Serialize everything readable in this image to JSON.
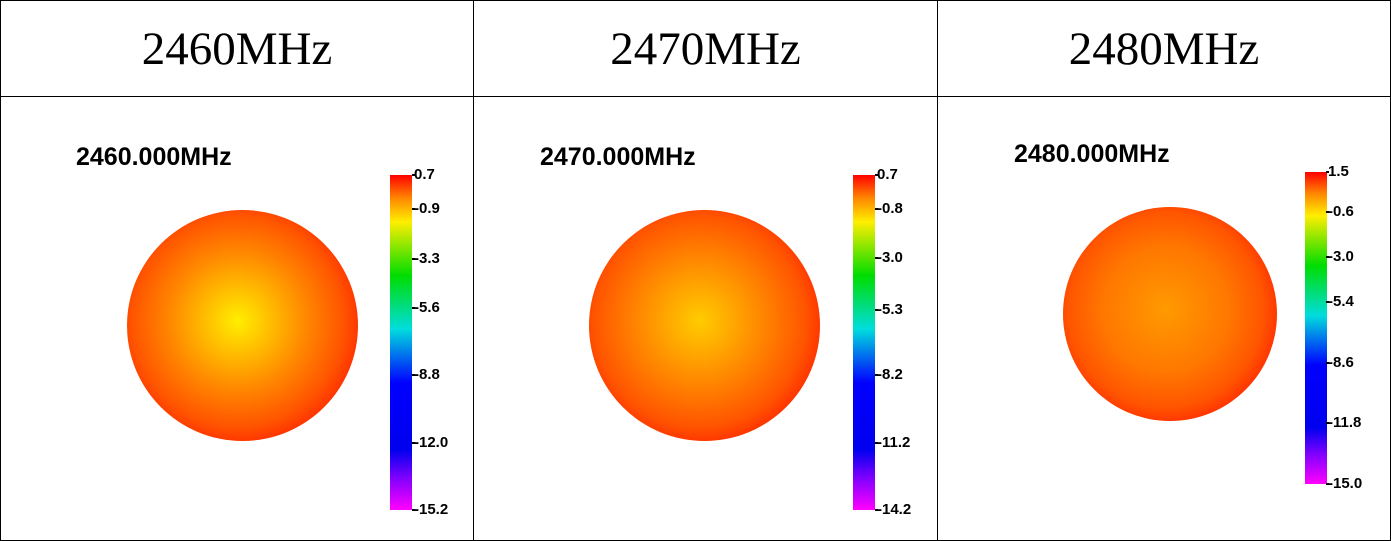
{
  "table": {
    "headers": [
      "2460MHz",
      "2470MHz",
      "2480MHz"
    ]
  },
  "chart_data": [
    {
      "type": "heatmap",
      "title": "2460.000MHz",
      "colorbar": {
        "min": -15.2,
        "max": 0.7,
        "ticks": [
          0.7,
          -0.9,
          -3.3,
          -5.6,
          -8.8,
          -12.0,
          -15.2
        ],
        "tick_labels": [
          "0.7",
          "-0.9",
          "-3.3",
          "-5.6",
          "-8.8",
          "-12.0",
          "-15.2"
        ]
      },
      "pattern": {
        "center_color": "#ffee00",
        "mid_color": "#ff8800",
        "edge_color": "#ff1a00",
        "rim_color": "#ff6a00"
      }
    },
    {
      "type": "heatmap",
      "title": "2470.000MHz",
      "colorbar": {
        "min": -14.2,
        "max": 0.7,
        "ticks": [
          0.7,
          -0.8,
          -3.0,
          -5.3,
          -8.2,
          -11.2,
          -14.2
        ],
        "tick_labels": [
          "0.7",
          "-0.8",
          "-3.0",
          "-5.3",
          "-8.2",
          "-11.2",
          "-14.2"
        ]
      },
      "pattern": {
        "center_color": "#ffcc00",
        "mid_color": "#ff8000",
        "edge_color": "#ff1a00",
        "rim_color": "#ff6a00"
      }
    },
    {
      "type": "heatmap",
      "title": "2480.000MHz",
      "colorbar": {
        "min": -15.0,
        "max": 1.5,
        "ticks": [
          1.5,
          -0.6,
          -3.0,
          -5.4,
          -8.6,
          -11.8,
          -15.0
        ],
        "tick_labels": [
          "1.5",
          "-0.6",
          "-3.0",
          "-5.4",
          "-8.6",
          "-11.8",
          "-15.0"
        ]
      },
      "pattern": {
        "center_color": "#ff9a00",
        "mid_color": "#ff7700",
        "edge_color": "#ff1a00",
        "rim_color": "#ff6a00"
      }
    }
  ]
}
